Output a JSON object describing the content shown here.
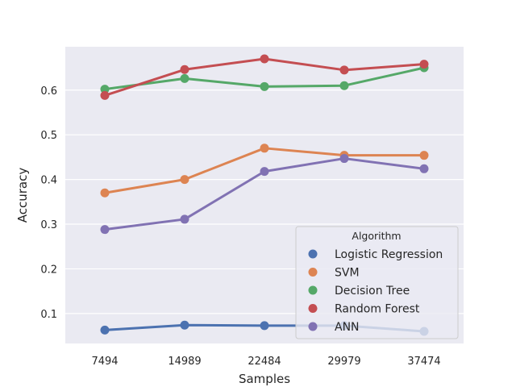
{
  "chart_data": {
    "type": "line",
    "xlabel": "Samples",
    "ylabel": "Accuracy",
    "categories": [
      "7494",
      "14989",
      "22484",
      "29979",
      "37474"
    ],
    "ylim": [
      0.033,
      0.697
    ],
    "yticks": [
      0.1,
      0.2,
      0.3,
      0.4,
      0.5,
      0.6
    ],
    "ytick_labels": [
      "0.1",
      "0.2",
      "0.3",
      "0.4",
      "0.5",
      "0.6"
    ],
    "grid": true,
    "legend_title": "Algorithm",
    "legend_position": "lower-right",
    "series": [
      {
        "name": "Logistic Regression",
        "color": "#4c72b0",
        "values": [
          0.063,
          0.074,
          0.073,
          0.073,
          0.06
        ]
      },
      {
        "name": "SVM",
        "color": "#dd8452",
        "values": [
          0.37,
          0.4,
          0.47,
          0.454,
          0.454
        ]
      },
      {
        "name": "Decision Tree",
        "color": "#55a868",
        "values": [
          0.602,
          0.626,
          0.608,
          0.61,
          0.65
        ]
      },
      {
        "name": "Random Forest",
        "color": "#c44e52",
        "values": [
          0.588,
          0.646,
          0.67,
          0.645,
          0.658
        ]
      },
      {
        "name": "ANN",
        "color": "#8172b3",
        "values": [
          0.288,
          0.311,
          0.418,
          0.447,
          0.424
        ]
      }
    ]
  }
}
